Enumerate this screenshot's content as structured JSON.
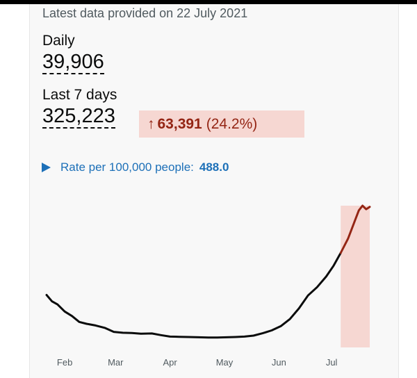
{
  "summary": {
    "latest_text": "Latest data provided on 22 July 2021",
    "daily_label": "Daily",
    "daily_value": "39,906",
    "seven_day_label": "Last 7 days",
    "seven_day_value": "325,223",
    "change_arrow": "↑",
    "change_value": "63,391",
    "change_percent": "(24.2%)",
    "rate_label": "Rate per 100,000 people:",
    "rate_value": "488.0"
  },
  "colors": {
    "line": "#0b0c0c",
    "highlight_line": "#942514",
    "highlight_fill": "#f6d7d2",
    "link": "#1d70b8"
  },
  "chart_data": {
    "type": "line",
    "x_ticks": [
      "Feb",
      "Mar",
      "Apr",
      "May",
      "Jun",
      "Jul"
    ],
    "series": [
      {
        "x": [
          0,
          3,
          6,
          10,
          14,
          18,
          22,
          27,
          32,
          37,
          42,
          47,
          52,
          58,
          63,
          68,
          73,
          78,
          84,
          89,
          94,
          99,
          104,
          109,
          114,
          119,
          124,
          129,
          134,
          139,
          144,
          149,
          154,
          158,
          162,
          166,
          170,
          172,
          174,
          176,
          178
        ],
        "values": [
          222,
          195,
          182,
          152,
          133,
          108,
          100,
          93,
          83,
          66,
          62,
          61,
          58,
          59,
          52,
          46,
          45,
          44,
          43,
          42,
          42,
          43,
          44,
          46,
          50,
          60,
          72,
          90,
          120,
          165,
          220,
          255,
          300,
          345,
          400,
          460,
          540,
          580,
          600,
          585,
          595
        ]
      }
    ],
    "highlight_last_days": 7,
    "xlim": [
      0,
      178
    ],
    "ylim": [
      0,
      600
    ],
    "grid": false
  }
}
